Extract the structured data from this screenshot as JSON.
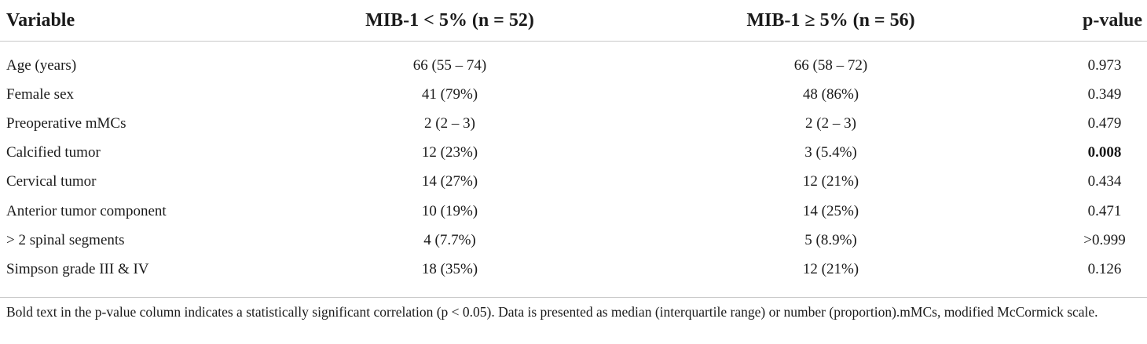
{
  "table": {
    "headers": [
      "Variable",
      "MIB-1 < 5% (n = 52)",
      "MIB-1 ≥ 5% (n = 56)",
      "p-value"
    ],
    "rows": [
      {
        "variable": "Age (years)",
        "low": "66 (55 – 74)",
        "high": "66 (58 – 72)",
        "p": "0.973",
        "significant": false
      },
      {
        "variable": "Female sex",
        "low": "41 (79%)",
        "high": "48 (86%)",
        "p": "0.349",
        "significant": false
      },
      {
        "variable": "Preoperative mMCs",
        "low": "2 (2 – 3)",
        "high": "2 (2 – 3)",
        "p": "0.479",
        "significant": false
      },
      {
        "variable": "Calcified tumor",
        "low": "12 (23%)",
        "high": "3 (5.4%)",
        "p": "0.008",
        "significant": true
      },
      {
        "variable": "Cervical tumor",
        "low": "14 (27%)",
        "high": "12 (21%)",
        "p": "0.434",
        "significant": false
      },
      {
        "variable": "Anterior tumor component",
        "low": "10 (19%)",
        "high": "14 (25%)",
        "p": "0.471",
        "significant": false
      },
      {
        "variable": "> 2 spinal segments",
        "low": "4 (7.7%)",
        "high": "5 (8.9%)",
        "p": ">0.999",
        "significant": false
      },
      {
        "variable": "Simpson grade III & IV",
        "low": "18 (35%)",
        "high": "12 (21%)",
        "p": "0.126",
        "significant": false
      }
    ]
  },
  "footnote": "Bold text in the p-value column indicates a statistically significant correlation (p < 0.05). Data is presented as median (interquartile range) or number (proportion).mMCs, modified McCormick scale."
}
